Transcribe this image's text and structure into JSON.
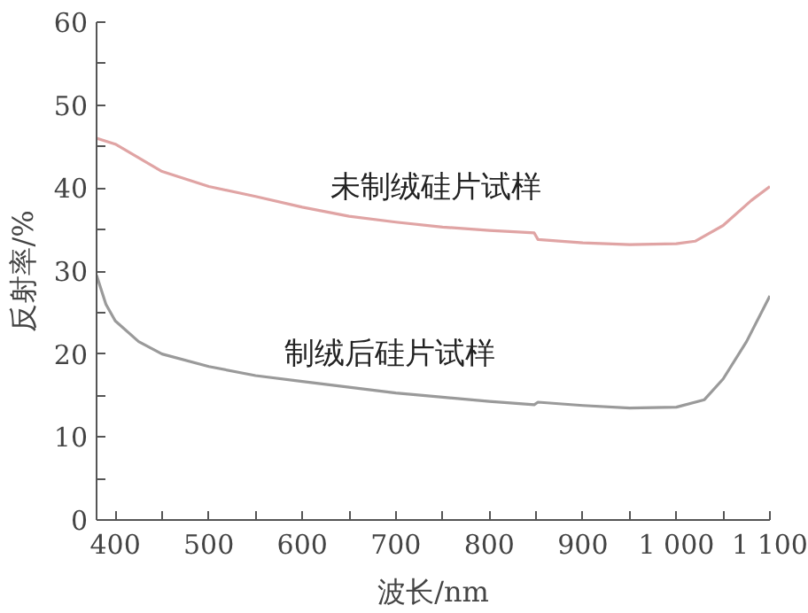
{
  "chart_data": {
    "type": "line",
    "xlabel": "波长/nm",
    "ylabel": "反射率/%",
    "xlim": [
      380,
      1100
    ],
    "ylim": [
      0,
      60
    ],
    "xticks": [
      400,
      {
        "value": 450,
        "label": null
      },
      500,
      {
        "value": 550,
        "label": null
      },
      600,
      {
        "value": 650,
        "label": null
      },
      700,
      {
        "value": 750,
        "label": null
      },
      800,
      {
        "value": 850,
        "label": null
      },
      900,
      {
        "value": 950,
        "label": null
      },
      {
        "value": 1000,
        "label": "1 000"
      },
      {
        "value": 1050,
        "label": null
      },
      {
        "value": 1100,
        "label": "1 100"
      }
    ],
    "yticks": [
      0,
      {
        "value": 5,
        "label": null
      },
      10,
      {
        "value": 15,
        "label": null
      },
      20,
      {
        "value": 25,
        "label": null
      },
      30,
      {
        "value": 35,
        "label": null
      },
      40,
      {
        "value": 45,
        "label": null
      },
      50,
      {
        "value": 55,
        "label": null
      },
      60
    ],
    "grid": false,
    "legend": false,
    "marker": "none",
    "line_style": "solid",
    "series": [
      {
        "name": "未制绒硅片试样",
        "color": "#e0a4a4",
        "x": [
          380,
          400,
          450,
          500,
          550,
          600,
          650,
          700,
          750,
          800,
          848,
          852,
          900,
          950,
          1000,
          1020,
          1050,
          1080,
          1100
        ],
        "values": [
          46,
          45.3,
          42,
          40.2,
          39,
          37.7,
          36.6,
          35.9,
          35.3,
          34.9,
          34.6,
          33.8,
          33.4,
          33.2,
          33.3,
          33.6,
          35.5,
          38.5,
          40.2
        ]
      },
      {
        "name": "制绒后硅片试样",
        "color": "#9a9a9a",
        "x": [
          380,
          390,
          400,
          425,
          450,
          500,
          550,
          600,
          650,
          700,
          750,
          800,
          848,
          852,
          900,
          950,
          1000,
          1030,
          1050,
          1075,
          1100
        ],
        "values": [
          29.5,
          26,
          24,
          21.5,
          20,
          18.5,
          17.4,
          16.7,
          16,
          15.3,
          14.8,
          14.3,
          13.9,
          14.2,
          13.8,
          13.5,
          13.6,
          14.5,
          17,
          21.5,
          27
        ]
      }
    ]
  }
}
